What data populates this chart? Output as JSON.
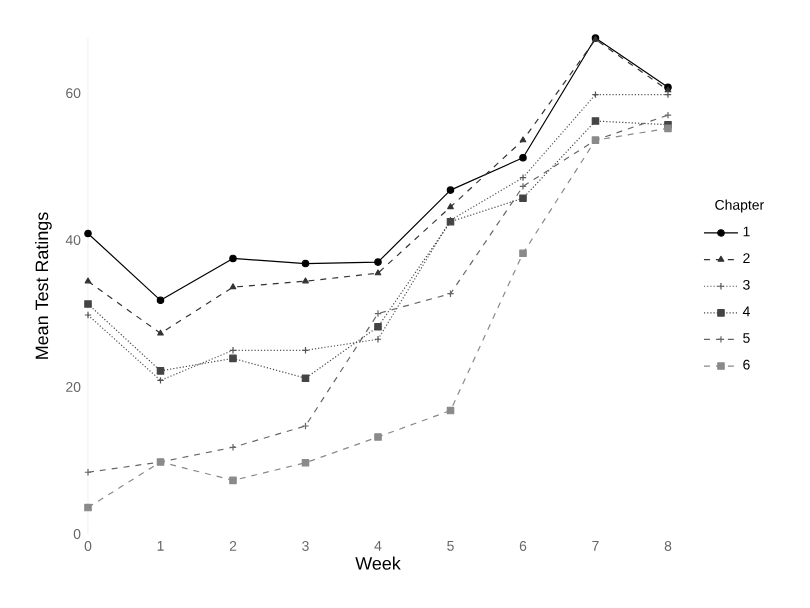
{
  "chart_data": {
    "type": "line",
    "xlabel": "Week",
    "ylabel": "Mean Test Ratings",
    "legend_title": "Chapter",
    "legend": "right",
    "grid": false,
    "x": [
      0,
      1,
      2,
      3,
      4,
      5,
      6,
      7,
      8
    ],
    "xlim": [
      0,
      8
    ],
    "ylim": [
      0,
      67.5
    ],
    "xticks": [
      0,
      1,
      2,
      3,
      4,
      5,
      6,
      7,
      8
    ],
    "yticks": [
      0,
      20,
      40,
      60
    ],
    "series": [
      {
        "name": "1",
        "color": "#000000",
        "marker": "circle",
        "line_style": "solid",
        "values": [
          40.9,
          31.8,
          37.5,
          36.8,
          37.0,
          46.8,
          51.2,
          67.5,
          60.8
        ]
      },
      {
        "name": "2",
        "color": "#333333",
        "marker": "triangle",
        "line_style": "dashed",
        "values": [
          34.4,
          27.3,
          33.6,
          34.4,
          35.5,
          44.5,
          53.6,
          67.3,
          60.4
        ]
      },
      {
        "name": "3",
        "color": "#555555",
        "marker": "cross",
        "line_style": "dotted",
        "values": [
          29.8,
          20.9,
          25.0,
          25.0,
          26.5,
          42.7,
          48.5,
          59.8,
          59.8
        ]
      },
      {
        "name": "4",
        "color": "#444444",
        "marker": "square",
        "line_style": "dotted",
        "values": [
          31.3,
          22.2,
          23.9,
          21.2,
          28.2,
          42.5,
          45.7,
          56.2,
          55.7
        ]
      },
      {
        "name": "5",
        "color": "#666666",
        "marker": "cross",
        "line_style": "dashed",
        "values": [
          8.4,
          9.8,
          11.8,
          14.7,
          30.0,
          32.7,
          47.3,
          53.6,
          57.0
        ]
      },
      {
        "name": "6",
        "color": "#8a8a8a",
        "marker": "square",
        "line_style": "dashed",
        "values": [
          3.6,
          9.8,
          7.3,
          9.7,
          13.2,
          16.8,
          38.2,
          53.6,
          55.2
        ]
      }
    ]
  }
}
